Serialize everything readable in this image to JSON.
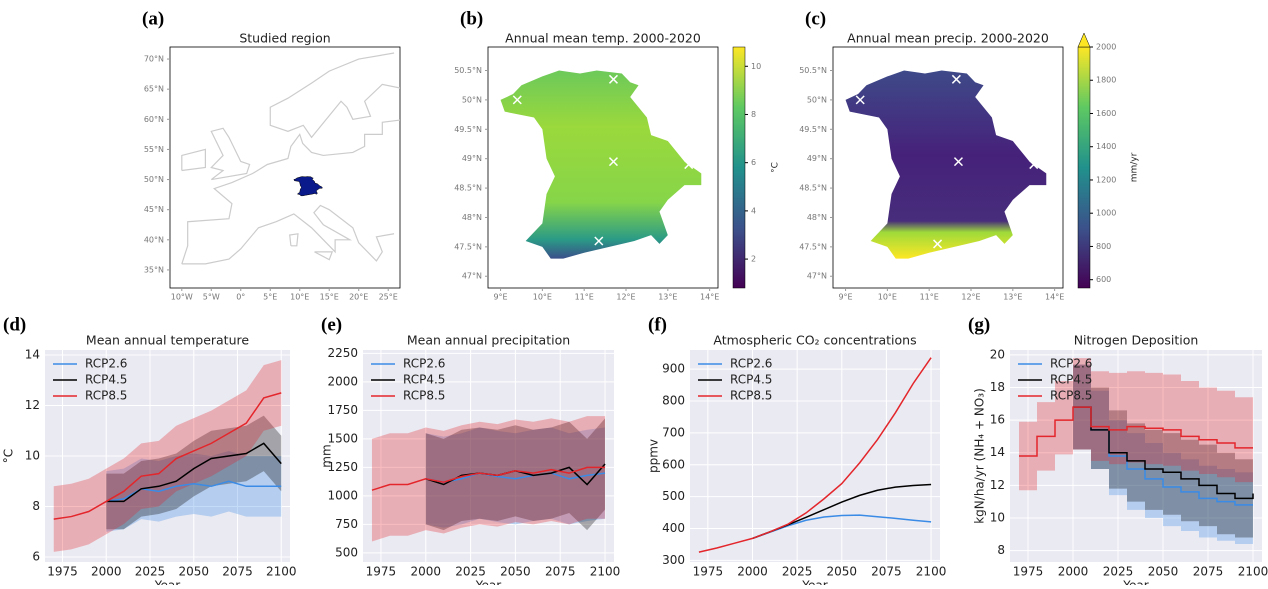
{
  "chart_data": [
    {
      "type": "map",
      "panel": "(a)",
      "title": "Studied region",
      "xlim": [
        -12,
        27
      ],
      "ylim": [
        32,
        72
      ],
      "xticks": [
        {
          "value": -10,
          "label": "10°W"
        },
        {
          "value": -5,
          "label": "5°W"
        },
        {
          "value": 0,
          "label": "0°"
        },
        {
          "value": 5,
          "label": "5°E"
        },
        {
          "value": 10,
          "label": "10°E"
        },
        {
          "value": 15,
          "label": "15°E"
        },
        {
          "value": 20,
          "label": "20°E"
        },
        {
          "value": 25,
          "label": "25°E"
        }
      ],
      "yticks": [
        {
          "value": 35,
          "label": "35°N"
        },
        {
          "value": 40,
          "label": "40°N"
        },
        {
          "value": 45,
          "label": "45°N"
        },
        {
          "value": 50,
          "label": "50°N"
        },
        {
          "value": 55,
          "label": "55°N"
        },
        {
          "value": 60,
          "label": "60°N"
        },
        {
          "value": 65,
          "label": "65°N"
        },
        {
          "value": 70,
          "label": "70°N"
        }
      ]
    },
    {
      "type": "map",
      "panel": "(b)",
      "title": "Annual mean temp. 2000-2020",
      "xlim": [
        8.7,
        14.2
      ],
      "ylim": [
        46.8,
        50.9
      ],
      "xticks": [
        {
          "value": 9,
          "label": "9°E"
        },
        {
          "value": 10,
          "label": "10°E"
        },
        {
          "value": 11,
          "label": "11°E"
        },
        {
          "value": 12,
          "label": "12°E"
        },
        {
          "value": 13,
          "label": "13°E"
        },
        {
          "value": 14,
          "label": "14°E"
        }
      ],
      "yticks": [
        {
          "value": 47,
          "label": "47°N"
        },
        {
          "value": 47.5,
          "label": "47.5°N"
        },
        {
          "value": 48,
          "label": "48°N"
        },
        {
          "value": 48.5,
          "label": "48.5°N"
        },
        {
          "value": 49,
          "label": "49°N"
        },
        {
          "value": 49.5,
          "label": "49.5°N"
        },
        {
          "value": 50,
          "label": "50°N"
        },
        {
          "value": 50.5,
          "label": "50.5°N"
        }
      ],
      "markers": {
        "x": [
          9.4,
          11.7,
          11.7,
          13.5,
          11.35
        ],
        "y": [
          50.0,
          50.35,
          48.95,
          48.9,
          47.6
        ]
      },
      "colorbar": {
        "label": "°C",
        "lim": [
          0.8,
          10.8
        ],
        "ticks": [
          2,
          4,
          6,
          8,
          10
        ],
        "colormap": "viridis"
      }
    },
    {
      "type": "map",
      "panel": "(c)",
      "title": "Annual mean precip. 2000-2020",
      "xlim": [
        8.7,
        14.2
      ],
      "ylim": [
        46.8,
        50.9
      ],
      "xticks": [
        {
          "value": 9,
          "label": "9°E"
        },
        {
          "value": 10,
          "label": "10°E"
        },
        {
          "value": 11,
          "label": "11°E"
        },
        {
          "value": 12,
          "label": "12°E"
        },
        {
          "value": 13,
          "label": "13°E"
        },
        {
          "value": 14,
          "label": "14°E"
        }
      ],
      "yticks": [
        {
          "value": 47,
          "label": "47°N"
        },
        {
          "value": 47.5,
          "label": "47.5°N"
        },
        {
          "value": 48,
          "label": "48°N"
        },
        {
          "value": 48.5,
          "label": "48.5°N"
        },
        {
          "value": 49,
          "label": "49°N"
        },
        {
          "value": 49.5,
          "label": "49.5°N"
        },
        {
          "value": 50,
          "label": "50°N"
        },
        {
          "value": 50.5,
          "label": "50.5°N"
        }
      ],
      "markers": {
        "x": [
          9.35,
          11.65,
          11.7,
          13.5,
          11.2
        ],
        "y": [
          50.0,
          50.35,
          48.95,
          48.9,
          47.55
        ]
      },
      "colorbar": {
        "label": "mm/yr",
        "lim": [
          550,
          2000
        ],
        "ticks": [
          600,
          800,
          1000,
          1200,
          1400,
          1600,
          1800,
          2000
        ],
        "colormap": "viridis",
        "extend": "max"
      }
    },
    {
      "type": "line",
      "panel": "(d)",
      "title": "Mean annual temperature",
      "xlabel": "Year",
      "ylabel": "°C",
      "x": [
        1970,
        1980,
        1990,
        2000,
        2010,
        2020,
        2030,
        2040,
        2050,
        2060,
        2070,
        2080,
        2090,
        2100
      ],
      "xlim": [
        1965,
        2105
      ],
      "xticks": [
        1975,
        2000,
        2025,
        2050,
        2075,
        2100
      ],
      "ylim": [
        5.8,
        14.2
      ],
      "yticks": [
        6,
        8,
        10,
        12,
        14
      ],
      "grid": true,
      "legend": "upper left",
      "series": [
        {
          "name": "RCP2.6",
          "color": "#3a8be6",
          "values": [
            null,
            null,
            null,
            8.2,
            8.3,
            8.7,
            8.6,
            8.8,
            8.9,
            8.8,
            9.0,
            8.8,
            8.8,
            8.8
          ],
          "lower": [
            null,
            null,
            null,
            7.0,
            7.1,
            7.5,
            7.4,
            7.6,
            7.7,
            7.6,
            7.8,
            7.6,
            7.6,
            7.6
          ],
          "upper": [
            null,
            null,
            null,
            9.4,
            9.5,
            9.9,
            9.8,
            10.0,
            10.1,
            10.0,
            10.2,
            10.0,
            10.0,
            10.0
          ]
        },
        {
          "name": "RCP4.5",
          "color": "#000000",
          "values": [
            null,
            null,
            null,
            8.2,
            8.2,
            8.7,
            8.8,
            9.0,
            9.5,
            9.9,
            10.0,
            10.1,
            10.5,
            9.7
          ],
          "lower": [
            null,
            null,
            null,
            7.1,
            7.1,
            7.6,
            7.7,
            7.9,
            8.4,
            8.8,
            8.9,
            9.0,
            9.4,
            8.6
          ],
          "upper": [
            null,
            null,
            null,
            9.3,
            9.3,
            9.8,
            9.9,
            10.1,
            10.6,
            11.0,
            11.1,
            11.2,
            11.6,
            10.8
          ]
        },
        {
          "name": "RCP8.5",
          "color": "#e3262b",
          "values": [
            7.5,
            7.6,
            7.8,
            8.2,
            8.6,
            9.2,
            9.3,
            9.9,
            10.2,
            10.5,
            10.9,
            11.3,
            12.3,
            12.5
          ],
          "lower": [
            6.2,
            6.3,
            6.5,
            6.9,
            7.3,
            7.9,
            8.0,
            8.6,
            8.9,
            9.2,
            9.6,
            10.0,
            11.0,
            11.2
          ],
          "upper": [
            8.8,
            8.9,
            9.1,
            9.5,
            9.9,
            10.5,
            10.6,
            11.2,
            11.5,
            11.8,
            12.2,
            12.6,
            13.6,
            13.8
          ]
        }
      ]
    },
    {
      "type": "line",
      "panel": "(e)",
      "title": "Mean annual precipitation",
      "xlabel": "Year",
      "ylabel": "mm",
      "x": [
        1970,
        1980,
        1990,
        2000,
        2010,
        2020,
        2030,
        2040,
        2050,
        2060,
        2070,
        2080,
        2090,
        2100
      ],
      "xlim": [
        1965,
        2105
      ],
      "xticks": [
        1975,
        2000,
        2025,
        2050,
        2075,
        2100
      ],
      "ylim": [
        420,
        2280
      ],
      "yticks": [
        500,
        750,
        1000,
        1250,
        1500,
        1750,
        2000,
        2250
      ],
      "grid": true,
      "legend": "upper left",
      "series": [
        {
          "name": "RCP2.6",
          "color": "#3a8be6",
          "values": [
            null,
            null,
            null,
            1150,
            1120,
            1150,
            1200,
            1170,
            1150,
            1180,
            1200,
            1150,
            1180,
            1200
          ],
          "lower": [
            null,
            null,
            null,
            750,
            720,
            750,
            800,
            770,
            750,
            780,
            800,
            750,
            780,
            800
          ],
          "upper": [
            null,
            null,
            null,
            1550,
            1520,
            1550,
            1600,
            1570,
            1550,
            1580,
            1600,
            1550,
            1580,
            1600
          ]
        },
        {
          "name": "RCP4.5",
          "color": "#000000",
          "values": [
            null,
            null,
            null,
            1150,
            1100,
            1180,
            1200,
            1180,
            1220,
            1180,
            1200,
            1250,
            1100,
            1280
          ],
          "lower": [
            null,
            null,
            null,
            750,
            700,
            780,
            800,
            780,
            820,
            780,
            800,
            850,
            700,
            880
          ],
          "upper": [
            null,
            null,
            null,
            1550,
            1500,
            1580,
            1600,
            1580,
            1620,
            1580,
            1600,
            1650,
            1500,
            1680
          ]
        },
        {
          "name": "RCP8.5",
          "color": "#e3262b",
          "values": [
            1050,
            1100,
            1100,
            1150,
            1120,
            1170,
            1200,
            1180,
            1220,
            1200,
            1230,
            1200,
            1250,
            1250
          ],
          "lower": [
            600,
            650,
            650,
            700,
            670,
            720,
            750,
            730,
            770,
            750,
            780,
            750,
            800,
            800
          ],
          "upper": [
            1500,
            1550,
            1550,
            1600,
            1570,
            1620,
            1650,
            1630,
            1670,
            1650,
            1680,
            1650,
            1700,
            1700
          ]
        }
      ]
    },
    {
      "type": "line",
      "panel": "(f)",
      "title": "Atmospheric CO₂ concentrations",
      "xlabel": "Year",
      "ylabel": "ppmv",
      "x": [
        1970,
        1980,
        1990,
        2000,
        2010,
        2020,
        2030,
        2040,
        2050,
        2060,
        2070,
        2080,
        2090,
        2100
      ],
      "xlim": [
        1965,
        2105
      ],
      "xticks": [
        1975,
        2000,
        2025,
        2050,
        2075,
        2100
      ],
      "ylim": [
        295,
        960
      ],
      "yticks": [
        300,
        400,
        500,
        600,
        700,
        800,
        900
      ],
      "grid": true,
      "legend": "upper left",
      "series": [
        {
          "name": "RCP2.6",
          "color": "#3a8be6",
          "values": [
            null,
            null,
            null,
            369,
            389,
            409,
            426,
            436,
            441,
            442,
            437,
            432,
            426,
            421
          ]
        },
        {
          "name": "RCP4.5",
          "color": "#000000",
          "values": [
            null,
            null,
            null,
            369,
            390,
            412,
            435,
            459,
            483,
            504,
            520,
            530,
            535,
            538
          ]
        },
        {
          "name": "RCP8.5",
          "color": "#e3262b",
          "values": [
            326,
            339,
            354,
            369,
            390,
            414,
            449,
            493,
            541,
            606,
            679,
            763,
            855,
            936
          ]
        }
      ]
    },
    {
      "type": "line",
      "panel": "(g)",
      "title": "Nitrogen Deposition",
      "xlabel": "Year",
      "ylabel": "kgN/ha/yr (NH₄ + NO₃)",
      "x": [
        1970,
        1980,
        1990,
        2000,
        2010,
        2020,
        2030,
        2040,
        2050,
        2060,
        2070,
        2080,
        2090,
        2100
      ],
      "xlim": [
        1965,
        2105
      ],
      "xticks": [
        1975,
        2000,
        2025,
        2050,
        2075,
        2100
      ],
      "ylim": [
        7.3,
        20.3
      ],
      "yticks": [
        8,
        10,
        12,
        14,
        16,
        18,
        20
      ],
      "grid": true,
      "legend": "upper left",
      "drawstyle": "steps-post",
      "series": [
        {
          "name": "RCP2.6",
          "color": "#3a8be6",
          "values": [
            null,
            null,
            null,
            16.8,
            15.4,
            13.8,
            13.0,
            12.4,
            11.9,
            11.6,
            11.2,
            11.0,
            10.8,
            10.8
          ],
          "lower": [
            null,
            null,
            null,
            14.2,
            13.0,
            11.4,
            10.5,
            10.0,
            9.5,
            9.2,
            8.8,
            8.6,
            8.4,
            8.4
          ],
          "upper": [
            null,
            null,
            null,
            19.4,
            17.8,
            16.0,
            15.2,
            14.6,
            14.0,
            13.6,
            13.2,
            13.0,
            12.8,
            12.8
          ]
        },
        {
          "name": "RCP4.5",
          "color": "#000000",
          "values": [
            null,
            null,
            null,
            16.8,
            15.4,
            14.0,
            13.5,
            13.0,
            12.8,
            12.4,
            12.0,
            11.5,
            11.2,
            11.5
          ],
          "lower": [
            null,
            null,
            null,
            14.2,
            13.0,
            11.8,
            11.0,
            10.5,
            10.2,
            9.8,
            9.5,
            9.0,
            8.8,
            9.0
          ],
          "upper": [
            null,
            null,
            null,
            19.4,
            18.0,
            16.6,
            15.8,
            15.4,
            15.2,
            14.8,
            14.5,
            14.0,
            13.6,
            14.0
          ]
        },
        {
          "name": "RCP8.5",
          "color": "#e3262b",
          "values": [
            13.8,
            15.0,
            16.0,
            16.8,
            15.6,
            15.4,
            15.6,
            15.5,
            15.4,
            15.0,
            14.8,
            14.6,
            14.3,
            14.3
          ],
          "lower": [
            11.7,
            12.9,
            13.9,
            14.2,
            13.5,
            13.3,
            13.4,
            13.3,
            13.2,
            12.9,
            12.7,
            12.5,
            12.2,
            12.2
          ],
          "upper": [
            15.9,
            17.1,
            18.4,
            19.8,
            19.0,
            18.9,
            19.0,
            18.9,
            18.8,
            18.4,
            18.0,
            17.8,
            17.4,
            17.4
          ]
        }
      ]
    }
  ]
}
